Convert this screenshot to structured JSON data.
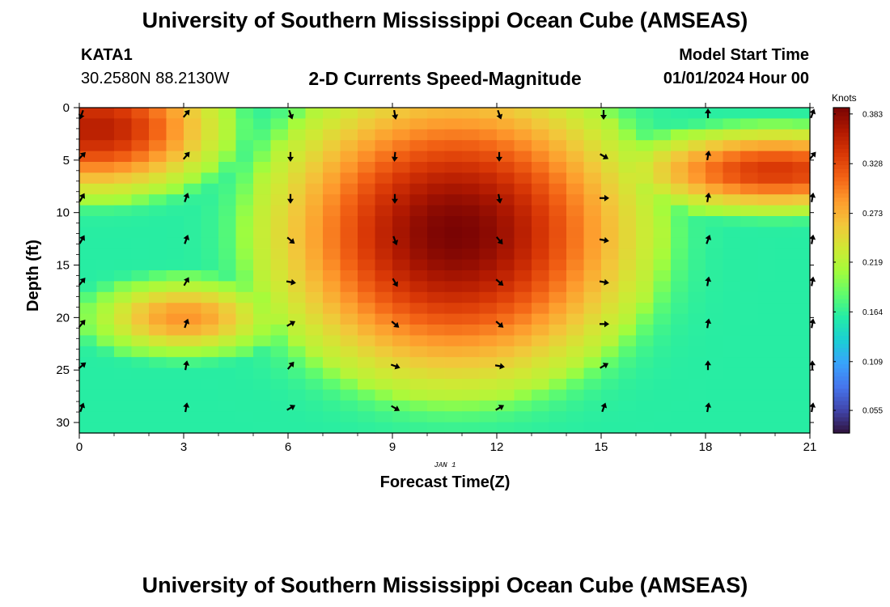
{
  "header": {
    "title": "University of Southern Mississippi Ocean Cube (AMSEAS)",
    "station_id": "KATA1",
    "coordinates": "30.2580N  88.2130W",
    "plot_title": "2-D Currents Speed-Magnitude",
    "model_start_label": "Model Start Time",
    "model_start_value": "01/01/2024 Hour 00"
  },
  "footer": {
    "title": "University of Southern Mississippi Ocean Cube (AMSEAS)"
  },
  "chart_data": {
    "type": "heatmap",
    "title": "2-D Currents Speed-Magnitude",
    "xlabel": "Forecast Time(Z)",
    "ylabel": "Depth (ft)",
    "x_date_label": "JAN 1",
    "xlim": [
      0,
      21
    ],
    "ylim": [
      31,
      0
    ],
    "x_ticks": [
      0,
      3,
      6,
      9,
      12,
      15,
      18,
      21
    ],
    "y_ticks": [
      0,
      5,
      10,
      15,
      20,
      25,
      30
    ],
    "colorbar": {
      "unit": "Knots",
      "min": 0.03,
      "max": 0.39,
      "ticks": [
        0.055,
        0.109,
        0.164,
        0.219,
        0.273,
        0.328,
        0.383
      ],
      "tick_labels": [
        "0.055",
        "0.109",
        "0.164",
        "0.219",
        "0.273",
        "0.328",
        "0.383"
      ],
      "colors": [
        "#30123b",
        "#4145ab",
        "#4675ed",
        "#39a2fc",
        "#1bcfd4",
        "#24eca6",
        "#61fc6c",
        "#a4fc3b",
        "#d1e834",
        "#f3c63a",
        "#fe9b2d",
        "#f36315",
        "#d93806",
        "#b11901",
        "#7a0403"
      ]
    },
    "hotspots": [
      {
        "name": "surface-early",
        "time": 0.5,
        "depth": 2,
        "value": 0.36,
        "sigma_t": 2.0,
        "sigma_d": 3.5
      },
      {
        "name": "core-main",
        "time": 10.8,
        "depth": 12,
        "value": 0.39,
        "sigma_t": 3.0,
        "sigma_d": 8.0
      },
      {
        "name": "mid-left",
        "time": 3.0,
        "depth": 20,
        "value": 0.29,
        "sigma_t": 1.5,
        "sigma_d": 2.0
      },
      {
        "name": "upper-right",
        "time": 20.0,
        "depth": 6,
        "value": 0.34,
        "sigma_t": 2.4,
        "sigma_d": 2.2
      }
    ],
    "base_speed": 0.16,
    "arrows": {
      "times": [
        0,
        3,
        6,
        9,
        12,
        15,
        18,
        21
      ],
      "depths": [
        0,
        4,
        8,
        12,
        16,
        20,
        24,
        28
      ],
      "directions_deg": [
        [
          200,
          40,
          160,
          170,
          160,
          180,
          0,
          20
        ],
        [
          45,
          40,
          180,
          185,
          180,
          120,
          10,
          40
        ],
        [
          30,
          20,
          180,
          180,
          170,
          90,
          10,
          10
        ],
        [
          30,
          20,
          130,
          160,
          140,
          100,
          20,
          10
        ],
        [
          40,
          30,
          100,
          150,
          130,
          100,
          10,
          10
        ],
        [
          40,
          20,
          60,
          130,
          130,
          90,
          10,
          10
        ],
        [
          50,
          10,
          40,
          110,
          100,
          60,
          0,
          0
        ],
        [
          20,
          10,
          60,
          120,
          60,
          20,
          10,
          10
        ]
      ]
    }
  }
}
